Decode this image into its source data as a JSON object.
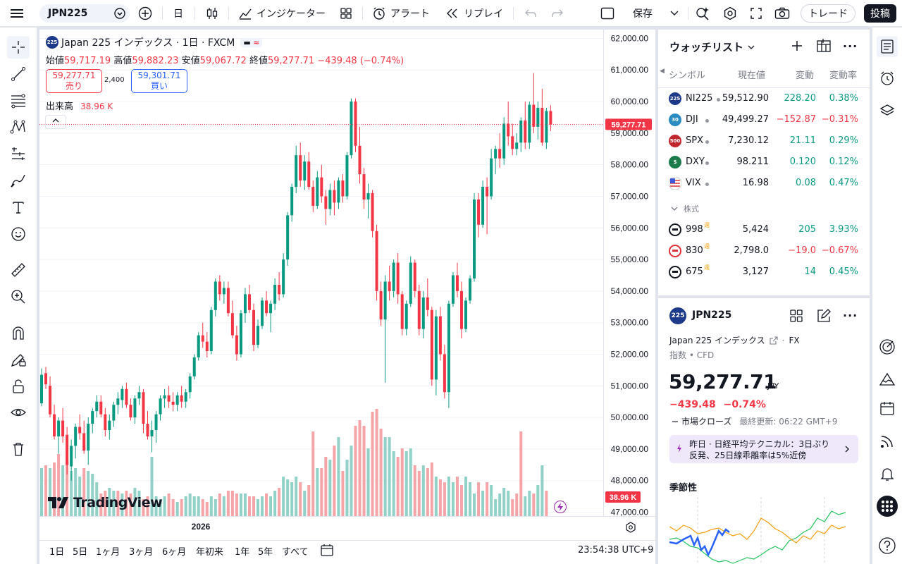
{
  "topbar": {
    "symbol": "JPN225",
    "interval": "日",
    "indicators": "インジケーター",
    "alert": "アラート",
    "replay": "リプレイ",
    "save": "保存",
    "trade": "トレード",
    "post": "投稿"
  },
  "legend": {
    "title": "Japan 225 インデックス · 1日 · FXCM",
    "badge_symbol": "225",
    "open_label": "始値",
    "open": "59,717.19",
    "high_label": "高値",
    "high": "59,882.23",
    "low_label": "安値",
    "low": "59,067.72",
    "close_label": "終値",
    "close": "59,277.71",
    "change": "−439.48 (−0.74%)",
    "sell_price": "59,277.71",
    "sell_label": "売り",
    "spread": "2,400",
    "buy_price": "59,301.71",
    "buy_label": "買い",
    "volume_label": "出来高",
    "volume": "38.96 K"
  },
  "chart_data": {
    "type": "candlestick",
    "x_tick_labels": [
      "2026"
    ],
    "y_axis_labels": [
      "62,000.00",
      "61,000.00",
      "60,000.00",
      "59,000.00",
      "58,000.00",
      "57,000.00",
      "56,000.00",
      "55,000.00",
      "54,000.00",
      "53,000.00",
      "52,000.00",
      "51,000.00",
      "50,000.00",
      "49,000.00",
      "48,000.00",
      "47,000.00"
    ],
    "ylim": [
      46900,
      62300
    ],
    "last_price_label": "59,277.71",
    "last_price": 59277.71,
    "last_volume_label": "38.96 K",
    "colors": {
      "up": "#089981",
      "down": "#f23645",
      "vol_up": "#92d1c7",
      "vol_down": "#f5a4a8"
    },
    "candles": [
      [
        50450,
        51550,
        50350,
        51350
      ],
      [
        51400,
        51600,
        50900,
        51050
      ],
      [
        51000,
        51300,
        50000,
        50100
      ],
      [
        50100,
        50400,
        49300,
        49400
      ],
      [
        49400,
        50000,
        48850,
        49900
      ],
      [
        49900,
        50300,
        49200,
        49400
      ],
      [
        49450,
        49700,
        48200,
        48500
      ],
      [
        48450,
        49300,
        48000,
        49100
      ],
      [
        49100,
        49800,
        48700,
        49700
      ],
      [
        49700,
        50100,
        49300,
        49500
      ],
      [
        49500,
        49900,
        48850,
        48950
      ],
      [
        48950,
        50000,
        48500,
        49800
      ],
      [
        49800,
        50300,
        49500,
        50200
      ],
      [
        50200,
        50700,
        50000,
        50500
      ],
      [
        50500,
        50700,
        50000,
        50100
      ],
      [
        50100,
        50300,
        49400,
        49600
      ],
      [
        49600,
        50100,
        49300,
        49900
      ],
      [
        49900,
        50500,
        49700,
        50400
      ],
      [
        50400,
        50800,
        50100,
        50600
      ],
      [
        50550,
        51000,
        50300,
        50900
      ],
      [
        50900,
        51100,
        50300,
        50400
      ],
      [
        50400,
        50600,
        49900,
        50000
      ],
      [
        50000,
        50700,
        49800,
        50600
      ],
      [
        50600,
        51000,
        50400,
        50800
      ],
      [
        50800,
        50900,
        49500,
        49800
      ],
      [
        49800,
        50200,
        49300,
        49400
      ],
      [
        49400,
        49900,
        48900,
        49600
      ],
      [
        49600,
        50200,
        49200,
        50100
      ],
      [
        50100,
        50700,
        49900,
        50600
      ],
      [
        50600,
        50900,
        50300,
        50700
      ],
      [
        50700,
        51000,
        50300,
        50500
      ],
      [
        50500,
        50800,
        50200,
        50400
      ],
      [
        50400,
        50800,
        50200,
        50700
      ],
      [
        50700,
        51000,
        50300,
        50500
      ],
      [
        50500,
        50900,
        50300,
        50800
      ],
      [
        50800,
        51400,
        50600,
        51300
      ],
      [
        51300,
        52000,
        51200,
        51900
      ],
      [
        51900,
        52700,
        51800,
        52600
      ],
      [
        52600,
        53000,
        52200,
        52400
      ],
      [
        52400,
        52700,
        51900,
        52100
      ],
      [
        52100,
        53500,
        52000,
        53400
      ],
      [
        53400,
        54400,
        53200,
        54300
      ],
      [
        54300,
        54500,
        53700,
        53900
      ],
      [
        53900,
        54300,
        53600,
        54100
      ],
      [
        54100,
        54300,
        53200,
        53300
      ],
      [
        53300,
        53700,
        52500,
        52600
      ],
      [
        52600,
        52900,
        51800,
        52000
      ],
      [
        52000,
        53400,
        51900,
        53300
      ],
      [
        53300,
        54100,
        53000,
        53900
      ],
      [
        53900,
        54200,
        53300,
        53400
      ],
      [
        53400,
        53600,
        52100,
        52300
      ],
      [
        52300,
        53100,
        52200,
        52900
      ],
      [
        52900,
        53800,
        52800,
        53700
      ],
      [
        53700,
        54000,
        53200,
        53300
      ],
      [
        53300,
        53700,
        52700,
        53600
      ],
      [
        53600,
        54400,
        53400,
        54200
      ],
      [
        54200,
        54600,
        53700,
        53900
      ],
      [
        53900,
        55200,
        53800,
        55000
      ],
      [
        55000,
        56500,
        54800,
        56400
      ],
      [
        56400,
        57400,
        56200,
        57300
      ],
      [
        57300,
        58600,
        57100,
        58300
      ],
      [
        58300,
        58700,
        57300,
        57500
      ],
      [
        57500,
        58300,
        57200,
        58100
      ],
      [
        58100,
        58400,
        57200,
        57300
      ],
      [
        57300,
        57500,
        56500,
        56700
      ],
      [
        56700,
        57800,
        56600,
        57600
      ],
      [
        57600,
        58000,
        56800,
        57000
      ],
      [
        57000,
        57200,
        56100,
        56600
      ],
      [
        56600,
        57400,
        56400,
        57200
      ],
      [
        57200,
        57500,
        56400,
        56800
      ],
      [
        56800,
        57600,
        56600,
        57500
      ],
      [
        57500,
        57700,
        56800,
        57000
      ],
      [
        57000,
        58400,
        56900,
        58300
      ],
      [
        58300,
        60100,
        58200,
        60000
      ],
      [
        60000,
        60100,
        58400,
        58600
      ],
      [
        58600,
        59200,
        57400,
        57700
      ],
      [
        57700,
        57900,
        56600,
        56900
      ],
      [
        56900,
        57400,
        56300,
        57100
      ],
      [
        57100,
        57200,
        55700,
        55900
      ],
      [
        55900,
        56100,
        53700,
        54000
      ],
      [
        54000,
        54300,
        52900,
        53100
      ],
      [
        53100,
        54500,
        51100,
        54300
      ],
      [
        54300,
        54800,
        53700,
        54000
      ],
      [
        54000,
        55000,
        53800,
        54900
      ],
      [
        54900,
        55200,
        53600,
        53900
      ],
      [
        53900,
        54000,
        52600,
        52800
      ],
      [
        52800,
        53700,
        52600,
        53600
      ],
      [
        53600,
        55100,
        53500,
        54900
      ],
      [
        54900,
        55000,
        53800,
        54000
      ],
      [
        54000,
        54200,
        52600,
        52800
      ],
      [
        52800,
        54000,
        52500,
        53800
      ],
      [
        53800,
        54400,
        53200,
        53400
      ],
      [
        53400,
        53500,
        51000,
        51200
      ],
      [
        51200,
        53400,
        50700,
        53200
      ],
      [
        53200,
        53500,
        51800,
        52000
      ],
      [
        52000,
        52300,
        50600,
        50800
      ],
      [
        50800,
        53700,
        50300,
        53600
      ],
      [
        53600,
        54600,
        53500,
        54500
      ],
      [
        54500,
        54900,
        53800,
        54000
      ],
      [
        54000,
        54300,
        52500,
        52800
      ],
      [
        52800,
        53800,
        52700,
        53700
      ],
      [
        53700,
        54500,
        53600,
        54400
      ],
      [
        54400,
        57100,
        54300,
        56900
      ],
      [
        56900,
        57100,
        55700,
        56100
      ],
      [
        56100,
        57500,
        56000,
        57300
      ],
      [
        57300,
        57600,
        55800,
        57000
      ],
      [
        57000,
        58500,
        56900,
        58200
      ],
      [
        58200,
        58600,
        57700,
        58500
      ],
      [
        58500,
        59000,
        57900,
        58200
      ],
      [
        58200,
        59500,
        58000,
        59300
      ],
      [
        59300,
        60000,
        58600,
        58900
      ],
      [
        58900,
        59300,
        58300,
        58500
      ],
      [
        58500,
        59000,
        58300,
        58700
      ],
      [
        58700,
        59500,
        58400,
        59400
      ],
      [
        59400,
        60000,
        58500,
        58700
      ],
      [
        58700,
        60000,
        58500,
        59900
      ],
      [
        59900,
        60900,
        59000,
        59200
      ],
      [
        59200,
        60000,
        58800,
        59800
      ],
      [
        59800,
        60400,
        58600,
        58700
      ],
      [
        58700,
        59800,
        58500,
        59700
      ],
      [
        59700,
        59882,
        59068,
        59278
      ]
    ],
    "volumes": [
      [
        17,
        1
      ],
      [
        18,
        0
      ],
      [
        17,
        1
      ],
      [
        19,
        0
      ],
      [
        22,
        0
      ],
      [
        18,
        1
      ],
      [
        20,
        0
      ],
      [
        16,
        1
      ],
      [
        17,
        1
      ],
      [
        14,
        1
      ],
      [
        17,
        0
      ],
      [
        16,
        1
      ],
      [
        15,
        1
      ],
      [
        12,
        1
      ],
      [
        8,
        0
      ],
      [
        9,
        0
      ],
      [
        10,
        1
      ],
      [
        9,
        1
      ],
      [
        9,
        0
      ],
      [
        8,
        1
      ],
      [
        9,
        0
      ],
      [
        8,
        0
      ],
      [
        10,
        1
      ],
      [
        9,
        1
      ],
      [
        6,
        0
      ],
      [
        7,
        0
      ],
      [
        21,
        1
      ],
      [
        7,
        1
      ],
      [
        6,
        1
      ],
      [
        7,
        1
      ],
      [
        8,
        0
      ],
      [
        6,
        0
      ],
      [
        5,
        1
      ],
      [
        6,
        0
      ],
      [
        7,
        1
      ],
      [
        8,
        1
      ],
      [
        7,
        1
      ],
      [
        7,
        1
      ],
      [
        6,
        0
      ],
      [
        5,
        0
      ],
      [
        7,
        1
      ],
      [
        6,
        1
      ],
      [
        8,
        0
      ],
      [
        7,
        1
      ],
      [
        9,
        0
      ],
      [
        9,
        0
      ],
      [
        8,
        0
      ],
      [
        8,
        1
      ],
      [
        8,
        1
      ],
      [
        7,
        0
      ],
      [
        7,
        0
      ],
      [
        6,
        1
      ],
      [
        7,
        1
      ],
      [
        8,
        0
      ],
      [
        7,
        1
      ],
      [
        9,
        1
      ],
      [
        10,
        0
      ],
      [
        14,
        1
      ],
      [
        13,
        1
      ],
      [
        12,
        1
      ],
      [
        14,
        1
      ],
      [
        12,
        0
      ],
      [
        9,
        1
      ],
      [
        11,
        0
      ],
      [
        30,
        0
      ],
      [
        17,
        1
      ],
      [
        17,
        0
      ],
      [
        21,
        0
      ],
      [
        20,
        1
      ],
      [
        25,
        0
      ],
      [
        28,
        1
      ],
      [
        16,
        0
      ],
      [
        20,
        1
      ],
      [
        25,
        1
      ],
      [
        32,
        0
      ],
      [
        34,
        0
      ],
      [
        32,
        0
      ],
      [
        24,
        1
      ],
      [
        37,
        0
      ],
      [
        38,
        0
      ],
      [
        31,
        0
      ],
      [
        28,
        1
      ],
      [
        28,
        1
      ],
      [
        23,
        1
      ],
      [
        21,
        0
      ],
      [
        24,
        0
      ],
      [
        23,
        1
      ],
      [
        24,
        1
      ],
      [
        18,
        0
      ],
      [
        16,
        0
      ],
      [
        18,
        1
      ],
      [
        17,
        0
      ],
      [
        19,
        0
      ],
      [
        14,
        1
      ],
      [
        13,
        0
      ],
      [
        12,
        0
      ],
      [
        14,
        1
      ],
      [
        12,
        1
      ],
      [
        14,
        0
      ],
      [
        11,
        0
      ],
      [
        14,
        1
      ],
      [
        12,
        1
      ],
      [
        8,
        1
      ],
      [
        12,
        0
      ],
      [
        9,
        1
      ],
      [
        12,
        0
      ],
      [
        11,
        1
      ],
      [
        6,
        1
      ],
      [
        8,
        1
      ],
      [
        10,
        1
      ],
      [
        9,
        1
      ],
      [
        6,
        0
      ],
      [
        8,
        0
      ],
      [
        30,
        0
      ],
      [
        7,
        1
      ],
      [
        9,
        1
      ],
      [
        8,
        0
      ],
      [
        11,
        1
      ],
      [
        18,
        1
      ],
      [
        9,
        0
      ]
    ]
  },
  "bottom": {
    "ranges": [
      "1日",
      "5日",
      "1ヶ月",
      "3ヶ月",
      "6ヶ月",
      "年初来",
      "1年",
      "5年",
      "すべて"
    ],
    "time": "23:54:38 UTC+9",
    "logo_text": "TradingView"
  },
  "watchlist": {
    "title": "ウォッチリスト",
    "col_symbol": "シンボル",
    "col_last": "現在値",
    "col_chg": "変動",
    "col_chgp": "変動率",
    "rows": [
      {
        "logo": "225",
        "logo_color": "#1e3a8a",
        "symbol": "NI225",
        "last": "59,512.90",
        "chg": "228.20",
        "chgp": "0.38%",
        "up": true
      },
      {
        "logo": "30",
        "logo_color": "#2b8cc4",
        "symbol": "DJI",
        "last": "49,499.27",
        "chg": "−152.87",
        "chgp": "−0.31%",
        "up": false
      },
      {
        "logo": "500",
        "logo_color": "#c0262d",
        "symbol": "SPX",
        "last": "7,230.12",
        "chg": "21.11",
        "chgp": "0.29%",
        "up": true
      },
      {
        "logo": "$",
        "logo_color": "#1b7b4c",
        "symbol": "DXY",
        "last": "98.211",
        "chg": "0.120",
        "chgp": "0.12%",
        "up": true
      },
      {
        "logo": "",
        "logo_color": "#3b5bdb",
        "symbol": "VIX",
        "last": "16.98",
        "chg": "0.08",
        "chgp": "0.47%",
        "up": true
      }
    ],
    "section_label": "株式",
    "stock_rows": [
      {
        "logo_color": "#131722",
        "symbol": "998",
        "last": "5,424",
        "chg": "205",
        "chgp": "3.93%",
        "up": true
      },
      {
        "logo_color": "#e0303a",
        "symbol": "830",
        "last": "2,798.0",
        "chg": "−19.0",
        "chgp": "−0.67%",
        "up": false
      },
      {
        "logo_color": "#131722",
        "symbol": "675",
        "last": "3,127",
        "chg": "14",
        "chgp": "0.45%",
        "up": true
      }
    ],
    "badge_week": "週"
  },
  "detail": {
    "logo": "225",
    "symbol": "JPN225",
    "name": "Japan 225 インデックス",
    "exchange": "FX",
    "category": "指数 • CFD",
    "price": "59,277.71",
    "currency": "JPY",
    "change": "−439.48",
    "change_pct": "−0.74%",
    "market_status": "市場クローズ",
    "last_update": "最終更新: 06:22 GMT+9",
    "news_line1": "昨日 · 日経平均テクニカル：3日ぶり",
    "news_line2": "反発、25日線乖離率は5%近傍",
    "seasonality_title": "季節性"
  }
}
